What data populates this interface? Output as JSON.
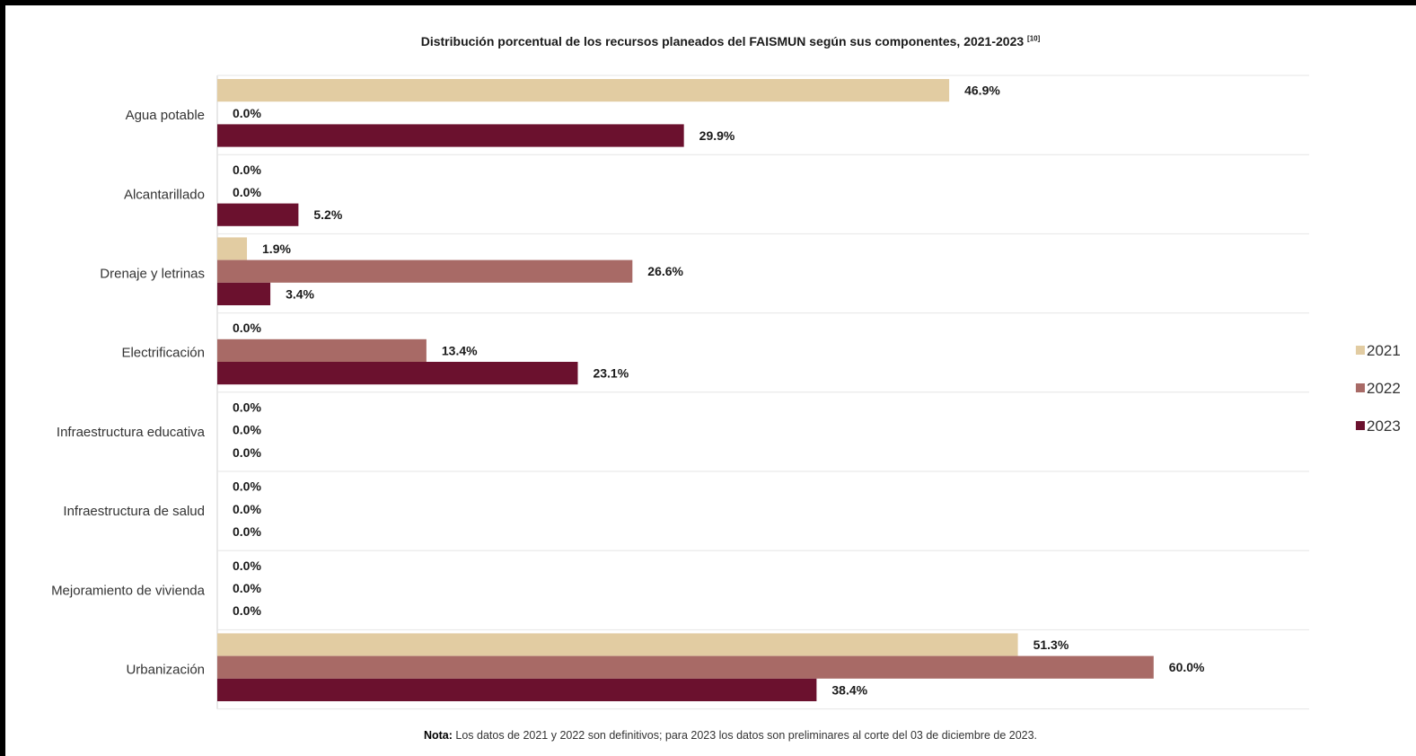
{
  "chart_data": {
    "type": "bar",
    "orientation": "horizontal",
    "title": "Distribución porcentual de los recursos planeados del FAISMUN según sus componentes, 2021-2023",
    "title_ref": "[10]",
    "categories": [
      "Agua potable",
      "Alcantarillado",
      "Drenaje y letrinas",
      "Electrificación",
      "Infraestructura educativa",
      "Infraestructura de salud",
      "Mejoramiento de vivienda",
      "Urbanización"
    ],
    "series": [
      {
        "name": "2021",
        "color": "#e2cca2",
        "values": [
          46.9,
          0.0,
          1.9,
          0.0,
          0.0,
          0.0,
          0.0,
          51.3
        ],
        "labels": [
          "46.9%",
          "0.0%",
          "1.9%",
          "0.0%",
          "0.0%",
          "0.0%",
          "0.0%",
          "51.3%"
        ]
      },
      {
        "name": "2022",
        "color": "#a86a66",
        "values": [
          0.0,
          0.0,
          26.6,
          13.4,
          0.0,
          0.0,
          0.0,
          60.0
        ],
        "labels": [
          "0.0%",
          "0.0%",
          "26.6%",
          "13.4%",
          "0.0%",
          "0.0%",
          "0.0%",
          "60.0%"
        ]
      },
      {
        "name": "2023",
        "color": "#6b112e",
        "values": [
          29.9,
          5.2,
          3.4,
          23.1,
          0.0,
          0.0,
          0.0,
          38.4
        ],
        "labels": [
          "29.9%",
          "5.2%",
          "3.4%",
          "23.1%",
          "0.0%",
          "0.0%",
          "0.0%",
          "38.4%"
        ]
      }
    ],
    "xlim": [
      0,
      60
    ],
    "legend_position": "right",
    "grid": "horizontal separators between categories",
    "note_label": "Nota:",
    "note_text": "Los datos de 2021 y 2022 son definitivos; para 2023 los datos son preliminares al corte del 03 de diciembre de 2023."
  }
}
